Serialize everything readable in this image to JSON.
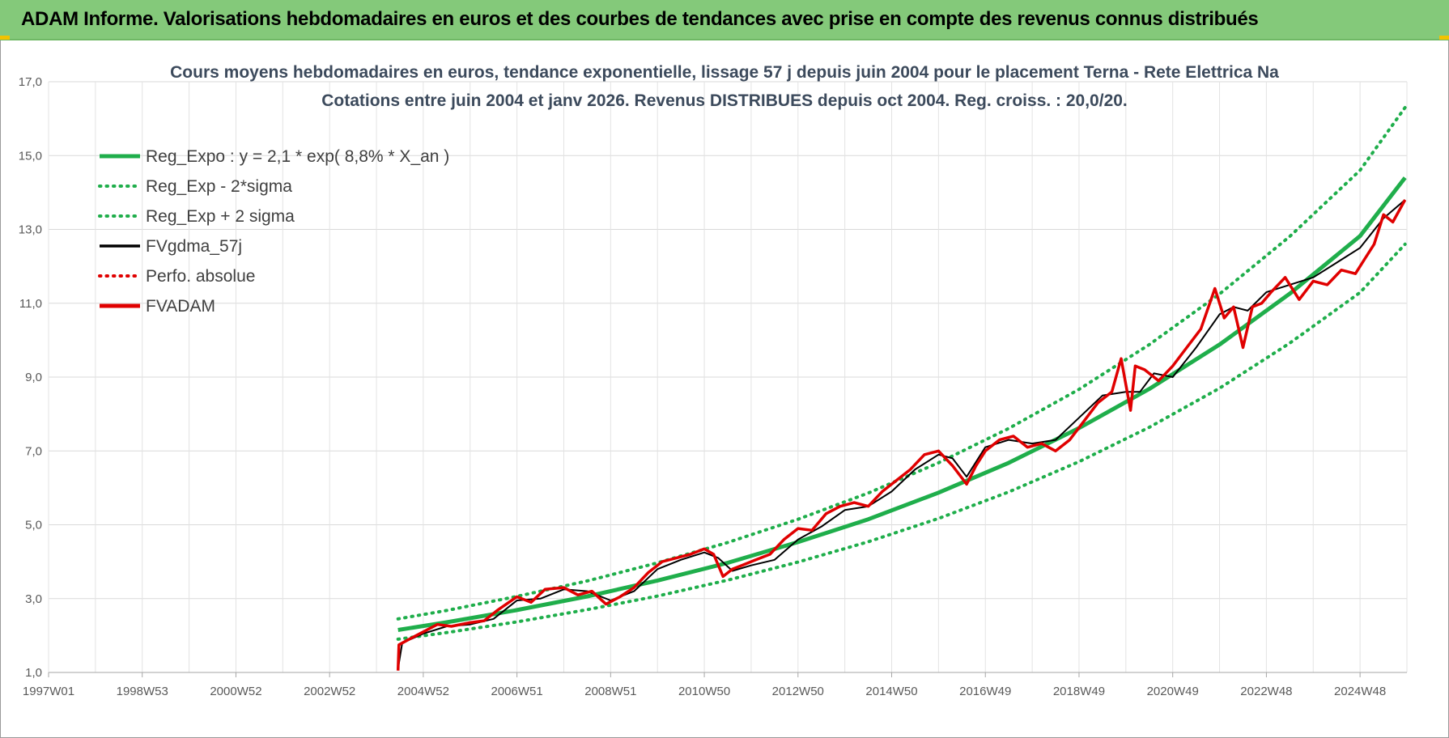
{
  "banner": {
    "title": "ADAM Informe. Valorisations hebdomadaires en euros et des courbes de tendances avec prise en compte des revenus connus distribués",
    "color": "#84c97a"
  },
  "chart_data": {
    "type": "line",
    "title": "Cours moyens hebdomadaires en euros, tendance exponentielle, lissage 57 j depuis juin 2004 pour le placement Terna - Rete Elettrica Na",
    "subtitle": "Cotations entre juin 2004 et janv 2026. Revenus DISTRIBUES depuis oct 2004. Reg. croiss. : 20,0/20.",
    "xlabel": "",
    "ylabel": "",
    "ylim": [
      1,
      17
    ],
    "xlim": [
      1997.0,
      2026.0
    ],
    "y_ticks": [
      "1,0",
      "3,0",
      "5,0",
      "7,0",
      "9,0",
      "11,0",
      "13,0",
      "15,0",
      "17,0"
    ],
    "x_ticks": [
      {
        "label": "1997W01",
        "x": 1997.0
      },
      {
        "label": "1998W53",
        "x": 1999.0
      },
      {
        "label": "2000W52",
        "x": 2001.0
      },
      {
        "label": "2002W52",
        "x": 2003.0
      },
      {
        "label": "2004W52",
        "x": 2005.0
      },
      {
        "label": "2006W51",
        "x": 2007.0
      },
      {
        "label": "2008W51",
        "x": 2009.0
      },
      {
        "label": "2010W50",
        "x": 2011.0
      },
      {
        "label": "2012W50",
        "x": 2013.0
      },
      {
        "label": "2014W50",
        "x": 2015.0
      },
      {
        "label": "2016W49",
        "x": 2017.0
      },
      {
        "label": "2018W49",
        "x": 2019.0
      },
      {
        "label": "2020W49",
        "x": 2021.0
      },
      {
        "label": "2022W48",
        "x": 2023.0
      },
      {
        "label": "2024W48",
        "x": 2025.0
      }
    ],
    "grid": true,
    "legend_position": "top-left",
    "legend": [
      {
        "name": "Reg_Expo : y = 2,1 * exp( 8,8% *  X_an )",
        "color": "#1fae4b",
        "style": "solid-thick"
      },
      {
        "name": "Reg_Exp - 2*sigma",
        "color": "#1fae4b",
        "style": "dotted"
      },
      {
        "name": "Reg_Exp + 2 sigma",
        "color": "#1fae4b",
        "style": "dotted"
      },
      {
        "name": "FVgdma_57j",
        "color": "#000000",
        "style": "solid"
      },
      {
        "name": "Perfo. absolue",
        "color": "#e00000",
        "style": "dotted"
      },
      {
        "name": "FVADAM",
        "color": "#e00000",
        "style": "solid-thick"
      }
    ],
    "series": [
      {
        "name": "Reg_Expo : y = 2,1 * exp( 8,8% *  X_an )",
        "x": [
          2004.46,
          2005.5,
          2007.0,
          2008.5,
          2010.0,
          2011.5,
          2013.0,
          2014.5,
          2016.0,
          2017.5,
          2019.0,
          2020.5,
          2022.0,
          2023.5,
          2025.0,
          2025.96
        ],
        "y": [
          2.15,
          2.36,
          2.69,
          3.06,
          3.49,
          3.97,
          4.53,
          5.15,
          5.87,
          6.68,
          7.62,
          8.68,
          9.88,
          11.26,
          12.82,
          14.4
        ]
      },
      {
        "name": "Reg_Exp - 2*sigma",
        "x": [
          2004.46,
          2005.5,
          2007.0,
          2008.5,
          2010.0,
          2011.5,
          2013.0,
          2014.5,
          2016.0,
          2017.5,
          2019.0,
          2020.5,
          2022.0,
          2023.5,
          2025.0,
          2025.96
        ],
        "y": [
          1.9,
          2.08,
          2.37,
          2.7,
          3.07,
          3.5,
          3.99,
          4.54,
          5.17,
          5.89,
          6.71,
          7.64,
          8.7,
          9.92,
          11.29,
          12.6
        ]
      },
      {
        "name": "Reg_Exp + 2 sigma",
        "x": [
          2004.46,
          2005.5,
          2007.0,
          2008.5,
          2010.0,
          2011.5,
          2013.0,
          2014.5,
          2016.0,
          2017.5,
          2019.0,
          2020.5,
          2022.0,
          2023.5,
          2025.0,
          2025.96
        ],
        "y": [
          2.45,
          2.68,
          3.06,
          3.48,
          3.97,
          4.52,
          5.15,
          5.86,
          6.68,
          7.61,
          8.67,
          9.88,
          11.25,
          12.81,
          14.6,
          16.3
        ]
      },
      {
        "name": "FVgdma_57j",
        "x": [
          2004.46,
          2004.55,
          2005.0,
          2005.5,
          2006.0,
          2006.5,
          2007.0,
          2007.5,
          2008.0,
          2008.5,
          2009.0,
          2009.5,
          2010.0,
          2010.5,
          2011.0,
          2011.3,
          2011.6,
          2012.0,
          2012.5,
          2013.0,
          2013.5,
          2014.0,
          2014.5,
          2015.0,
          2015.5,
          2016.0,
          2016.3,
          2016.6,
          2017.0,
          2017.5,
          2018.0,
          2018.5,
          2019.0,
          2019.5,
          2020.0,
          2020.3,
          2020.6,
          2021.0,
          2021.5,
          2022.0,
          2022.3,
          2022.6,
          2023.0,
          2023.5,
          2024.0,
          2024.5,
          2025.0,
          2025.5,
          2025.96
        ],
        "y": [
          1.1,
          1.8,
          2.05,
          2.25,
          2.3,
          2.45,
          2.95,
          3.0,
          3.25,
          3.2,
          2.95,
          3.2,
          3.8,
          4.05,
          4.25,
          4.1,
          3.75,
          3.9,
          4.05,
          4.6,
          4.95,
          5.4,
          5.5,
          5.9,
          6.5,
          6.9,
          6.8,
          6.3,
          7.1,
          7.3,
          7.2,
          7.3,
          7.9,
          8.5,
          8.6,
          8.6,
          9.1,
          9.0,
          9.8,
          10.7,
          10.9,
          10.8,
          11.3,
          11.5,
          11.7,
          12.1,
          12.5,
          13.3,
          13.8
        ]
      },
      {
        "name": "FVADAM",
        "x": [
          2004.46,
          2004.48,
          2004.7,
          2005.0,
          2005.3,
          2005.6,
          2006.0,
          2006.3,
          2006.6,
          2007.0,
          2007.3,
          2007.6,
          2008.0,
          2008.3,
          2008.6,
          2008.9,
          2009.2,
          2009.5,
          2009.8,
          2010.1,
          2010.4,
          2010.7,
          2011.0,
          2011.2,
          2011.4,
          2011.6,
          2011.8,
          2012.1,
          2012.4,
          2012.7,
          2013.0,
          2013.3,
          2013.6,
          2013.9,
          2014.2,
          2014.5,
          2014.8,
          2015.1,
          2015.4,
          2015.7,
          2016.0,
          2016.3,
          2016.6,
          2016.8,
          2017.0,
          2017.3,
          2017.6,
          2017.9,
          2018.2,
          2018.5,
          2018.8,
          2019.1,
          2019.4,
          2019.7,
          2019.9,
          2020.1,
          2020.2,
          2020.4,
          2020.7,
          2021.0,
          2021.3,
          2021.6,
          2021.9,
          2022.1,
          2022.3,
          2022.5,
          2022.7,
          2022.9,
          2023.1,
          2023.4,
          2023.7,
          2024.0,
          2024.3,
          2024.6,
          2024.9,
          2025.1,
          2025.3,
          2025.5,
          2025.7,
          2025.96
        ],
        "y": [
          1.05,
          1.75,
          1.9,
          2.1,
          2.3,
          2.25,
          2.35,
          2.4,
          2.7,
          3.05,
          2.9,
          3.25,
          3.3,
          3.1,
          3.2,
          2.85,
          3.05,
          3.3,
          3.7,
          4.0,
          4.1,
          4.2,
          4.35,
          4.2,
          3.6,
          3.8,
          3.9,
          4.05,
          4.2,
          4.6,
          4.9,
          4.85,
          5.3,
          5.5,
          5.6,
          5.5,
          5.9,
          6.2,
          6.5,
          6.9,
          7.0,
          6.6,
          6.1,
          6.6,
          7.0,
          7.3,
          7.4,
          7.1,
          7.2,
          7.0,
          7.3,
          7.8,
          8.3,
          8.6,
          9.5,
          8.1,
          9.3,
          9.2,
          8.9,
          9.3,
          9.8,
          10.3,
          11.4,
          10.6,
          10.9,
          9.8,
          10.9,
          11.0,
          11.3,
          11.7,
          11.1,
          11.6,
          11.5,
          11.9,
          11.8,
          12.2,
          12.6,
          13.4,
          13.2,
          13.8
        ]
      }
    ]
  }
}
